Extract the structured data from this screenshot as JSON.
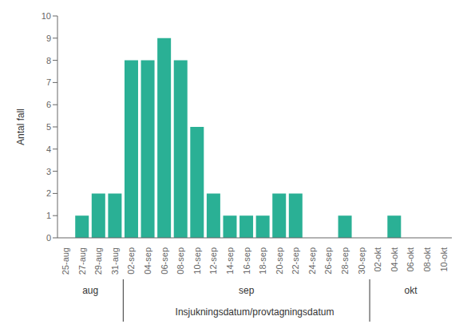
{
  "chart_data": {
    "type": "bar",
    "categories": [
      "25-aug",
      "27-aug",
      "29-aug",
      "31-aug",
      "02-sep",
      "04-sep",
      "06-sep",
      "08-sep",
      "10-sep",
      "12-sep",
      "14-sep",
      "16-sep",
      "18-sep",
      "20-sep",
      "22-sep",
      "24-sep",
      "26-sep",
      "28-sep",
      "30-sep",
      "02-okt",
      "04-okt",
      "06-okt",
      "08-okt",
      "10-okt"
    ],
    "values": [
      0,
      1,
      2,
      2,
      8,
      8,
      9,
      8,
      5,
      2,
      1,
      1,
      1,
      2,
      2,
      0,
      0,
      1,
      0,
      0,
      1,
      0,
      0,
      0
    ],
    "color": "#2ab095",
    "ylabel": "Antal fall",
    "xlabel": "Insjukningsdatum/provtagningsdatum",
    "ylim": [
      0,
      10
    ],
    "yticks": [
      0,
      1,
      2,
      3,
      4,
      5,
      6,
      7,
      8,
      9,
      10
    ],
    "annotations": [
      {
        "text": "aug",
        "from": "25-aug",
        "to": "31-aug"
      },
      {
        "text": "sep",
        "from": "02-sep",
        "to": "30-sep"
      },
      {
        "text": "okt",
        "from": "02-okt",
        "to": "10-okt"
      }
    ]
  }
}
